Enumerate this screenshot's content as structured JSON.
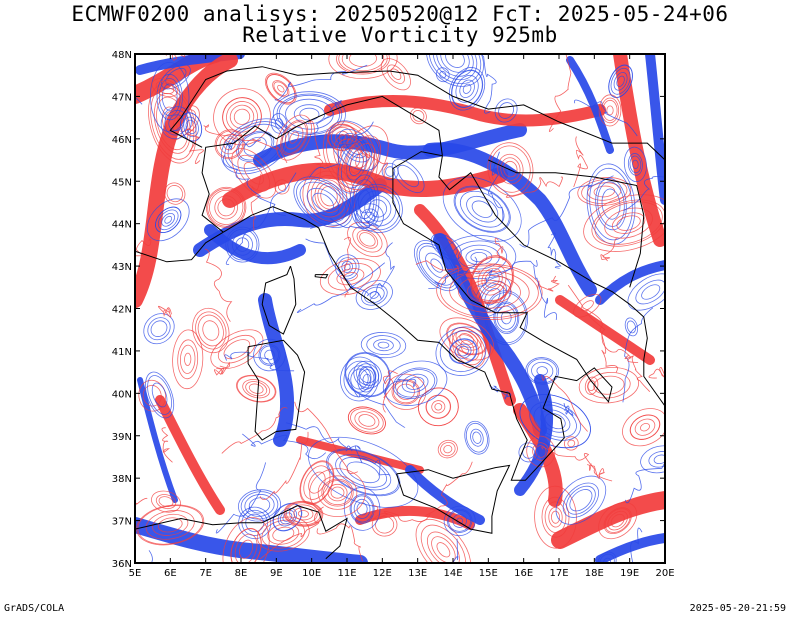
{
  "title_line1": "ECMWF0200 analisys: 20250520@12 FcT: 2025-05-24+06",
  "title_line2": "Relative Vorticity 925mb",
  "footer_left": "GrADS/COLA",
  "footer_right": "2025-05-20-21:59",
  "map": {
    "lon_range": [
      5,
      20
    ],
    "lat_range": [
      36,
      48
    ],
    "lon_ticks": [
      "5E",
      "6E",
      "7E",
      "8E",
      "9E",
      "10E",
      "11E",
      "12E",
      "13E",
      "14E",
      "15E",
      "16E",
      "17E",
      "18E",
      "19E",
      "20E"
    ],
    "lat_ticks": [
      "48N",
      "47N",
      "46N",
      "45N",
      "44N",
      "43N",
      "42N",
      "41N",
      "40N",
      "39N",
      "38N",
      "37N",
      "36N"
    ],
    "positive_color": "#f23c3c",
    "negative_color": "#2848e8",
    "coastline_color": "#000000"
  }
}
